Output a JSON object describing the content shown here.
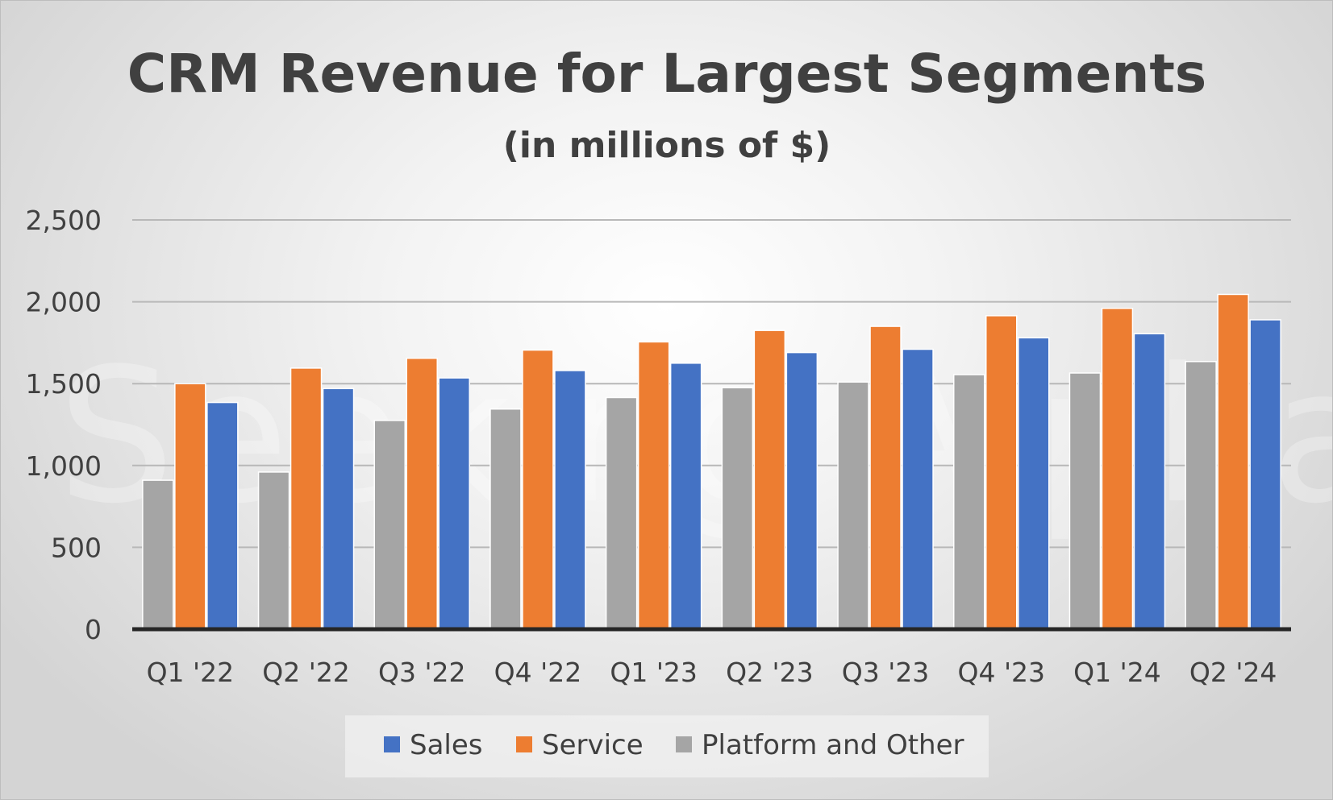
{
  "watermark": "Seeking Alpha",
  "chart_data": {
    "type": "bar",
    "title": "CRM Revenue for Largest Segments",
    "subtitle": "(in millions of $)",
    "xlabel": "",
    "ylabel": "",
    "categories": [
      "Q1 '22",
      "Q2 '22",
      "Q3 '22",
      "Q4 '22",
      "Q1 '23",
      "Q2 '23",
      "Q3 '23",
      "Q4 '23",
      "Q1 '24",
      "Q2 '24"
    ],
    "series": [
      {
        "name": "Platform and Other",
        "color": "#a5a5a5",
        "values": [
          910,
          960,
          1275,
          1345,
          1415,
          1475,
          1510,
          1555,
          1565,
          1635
        ]
      },
      {
        "name": "Service",
        "color": "#ed7d31",
        "values": [
          1500,
          1595,
          1655,
          1705,
          1755,
          1825,
          1850,
          1915,
          1960,
          2045
        ]
      },
      {
        "name": "Sales",
        "color": "#4472c4",
        "values": [
          1385,
          1470,
          1535,
          1580,
          1625,
          1690,
          1710,
          1780,
          1805,
          1890
        ]
      }
    ],
    "ylim": [
      0,
      2500
    ],
    "yticks": [
      0,
      500,
      1000,
      1500,
      2000,
      2500
    ],
    "ytick_labels": [
      "0",
      "500",
      "1,000",
      "1,500",
      "2,000",
      "2,500"
    ],
    "grid": true,
    "legend": {
      "position": "bottom",
      "order": [
        "Sales",
        "Service",
        "Platform and Other"
      ]
    }
  }
}
